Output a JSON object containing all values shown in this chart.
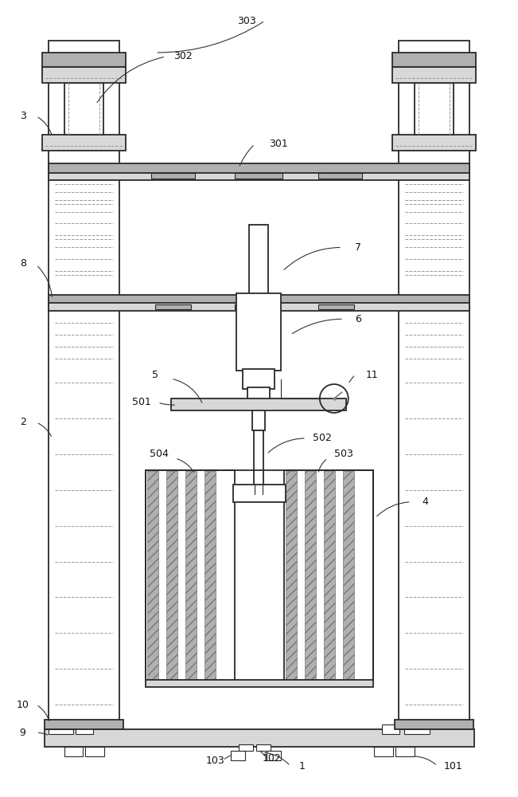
{
  "bg_color": "#ffffff",
  "line_color": "#2a2a2a",
  "gray_light": "#d8d8d8",
  "gray_med": "#b0b0b0",
  "hatch_fc": "#8a8a8a",
  "figsize": [
    6.51,
    10.0
  ],
  "dpi": 100
}
